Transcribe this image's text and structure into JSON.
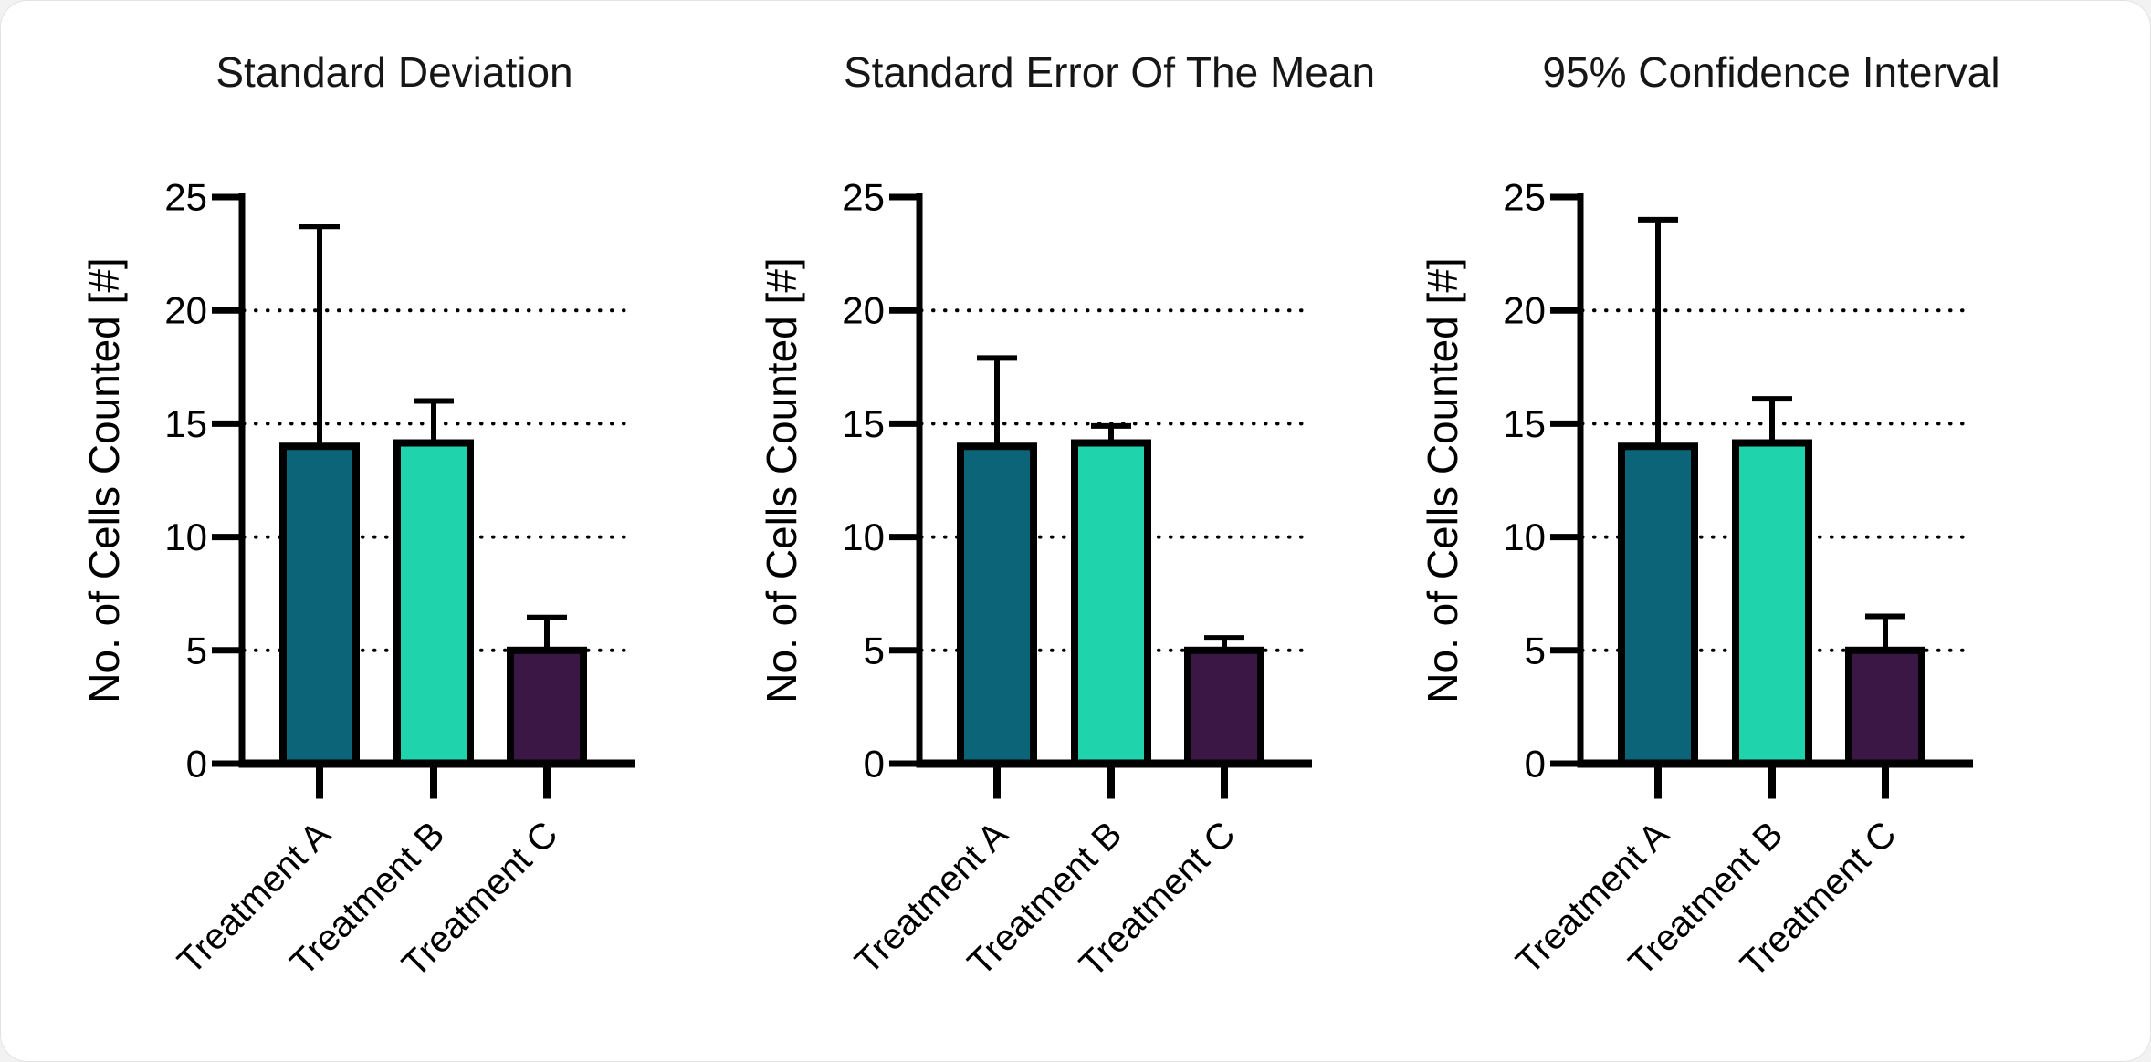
{
  "figure": {
    "background": "#ffffff",
    "axis_color": "#000000",
    "text_color": "#161616"
  },
  "chart_data": [
    {
      "type": "bar",
      "title": "Standard Deviation",
      "ylabel": "No. of Cells Counted [#]",
      "xlabel": "",
      "categories": [
        "Treatment A",
        "Treatment B",
        "Treatment C"
      ],
      "values": [
        14,
        14.15,
        5
      ],
      "error_plus": [
        9.7,
        1.85,
        1.45
      ],
      "error_bars": "upper only",
      "bar_colors": [
        "#0b6477",
        "#1fd3ad",
        "#3a1745"
      ],
      "bar_outline_color": "#000000",
      "ylim": [
        0,
        25
      ],
      "yticks": [
        0,
        5,
        10,
        15,
        20,
        25
      ],
      "gridlines": [
        5,
        10,
        15,
        20
      ],
      "grid_style": "dotted",
      "legend_position": "none"
    },
    {
      "type": "bar",
      "title": "Standard Error Of The Mean",
      "ylabel": "No. of Cells Counted [#]",
      "xlabel": "",
      "categories": [
        "Treatment A",
        "Treatment B",
        "Treatment C"
      ],
      "values": [
        14,
        14.15,
        5
      ],
      "error_plus": [
        3.9,
        0.75,
        0.55
      ],
      "error_bars": "upper only",
      "bar_colors": [
        "#0b6477",
        "#1fd3ad",
        "#3a1745"
      ],
      "bar_outline_color": "#000000",
      "ylim": [
        0,
        25
      ],
      "yticks": [
        0,
        5,
        10,
        15,
        20,
        25
      ],
      "gridlines": [
        5,
        10,
        15,
        20
      ],
      "grid_style": "dotted",
      "legend_position": "none"
    },
    {
      "type": "bar",
      "title": "95% Confidence Interval",
      "ylabel": "No. of Cells Counted [#]",
      "xlabel": "",
      "categories": [
        "Treatment A",
        "Treatment B",
        "Treatment C"
      ],
      "values": [
        14,
        14.15,
        5
      ],
      "error_plus": [
        10.0,
        1.95,
        1.5
      ],
      "error_bars": "upper only",
      "bar_colors": [
        "#0b6477",
        "#1fd3ad",
        "#3a1745"
      ],
      "bar_outline_color": "#000000",
      "ylim": [
        0,
        25
      ],
      "yticks": [
        0,
        5,
        10,
        15,
        20,
        25
      ],
      "gridlines": [
        5,
        10,
        15,
        20
      ],
      "grid_style": "dotted",
      "legend_position": "none"
    }
  ]
}
